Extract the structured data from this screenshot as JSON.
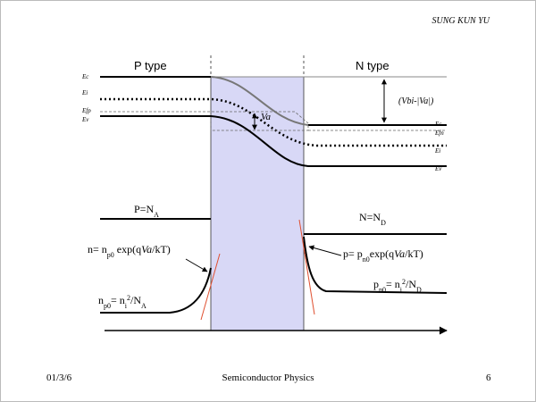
{
  "header": {
    "author": "SUNG KUN YU"
  },
  "diagram": {
    "p_type": "P type",
    "n_type": "N type",
    "left_levels": [
      "Ec",
      "Ei",
      "Efp",
      "Ev"
    ],
    "right_levels": [
      "Ec",
      "Efn",
      "Ei",
      "Ev"
    ],
    "barrier": "(Vbi-|Va|)",
    "applied": "Va",
    "p_majority": [
      "P=N",
      "A"
    ],
    "n_majority": [
      "N=N",
      "D"
    ],
    "n_edge": [
      "n= n",
      "p0",
      " exp(q",
      "Va",
      "/kT)"
    ],
    "p_edge": [
      "p= p",
      "n0",
      "exp(q",
      "Va",
      "/kT)"
    ],
    "n_p0": [
      "n",
      "p0",
      "= n",
      "i",
      "2",
      "/N",
      "A"
    ],
    "p_n0": [
      "p",
      "n0",
      "= n",
      "i",
      "2",
      "/N",
      "D"
    ]
  },
  "footer": {
    "date": "01/3/6",
    "course": "Semiconductor Physics",
    "page": "6"
  }
}
